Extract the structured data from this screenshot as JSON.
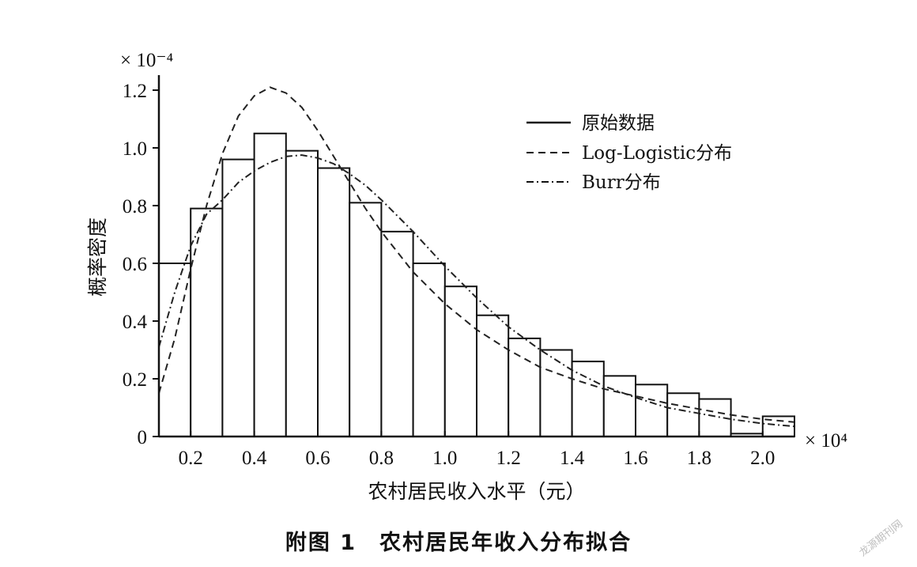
{
  "figure": {
    "caption": "附图 1　农村居民年收入分布拟合",
    "watermark": "龙源期刊网"
  },
  "chart_data": {
    "type": "bar",
    "title": "",
    "xlabel": "农村居民收入水平（元）",
    "ylabel": "概率密度",
    "x_multiplier": "× 10⁴",
    "y_multiplier": "× 10⁻⁴",
    "xlim": [
      0.1,
      2.1
    ],
    "ylim": [
      0,
      1.2
    ],
    "x_ticks": [
      0.2,
      0.4,
      0.6,
      0.8,
      1.0,
      1.2,
      1.4,
      1.6,
      1.8,
      2.0
    ],
    "x_tick_labels": [
      "0.2",
      "0.4",
      "0.6",
      "0.8",
      "1.0",
      "1.2",
      "1.4",
      "1.6",
      "1.8",
      "2.0"
    ],
    "y_ticks": [
      0,
      0.2,
      0.4,
      0.6,
      0.8,
      1.0,
      1.2
    ],
    "y_tick_labels": [
      "0",
      "0.2",
      "0.4",
      "0.6",
      "0.8",
      "1.0",
      "1.2"
    ],
    "bin_width": 0.1,
    "bin_starts": [
      0.1,
      0.2,
      0.3,
      0.4,
      0.5,
      0.6,
      0.7,
      0.8,
      0.9,
      1.0,
      1.1,
      1.2,
      1.3,
      1.4,
      1.5,
      1.6,
      1.7,
      1.8,
      1.9,
      2.0
    ],
    "values": [
      0.6,
      0.79,
      0.96,
      1.05,
      0.99,
      0.93,
      0.81,
      0.71,
      0.6,
      0.52,
      0.42,
      0.34,
      0.3,
      0.26,
      0.21,
      0.18,
      0.15,
      0.13,
      0.01,
      0.07
    ],
    "legend_position": "top-right",
    "series": [
      {
        "name": "原始数据",
        "style": "solid"
      },
      {
        "name": "Log-Logistic分布",
        "style": "dashed",
        "x": [
          0.1,
          0.15,
          0.2,
          0.25,
          0.3,
          0.35,
          0.4,
          0.45,
          0.5,
          0.55,
          0.6,
          0.65,
          0.7,
          0.75,
          0.8,
          0.9,
          1.0,
          1.1,
          1.2,
          1.3,
          1.4,
          1.5,
          1.6,
          1.7,
          1.8,
          1.9,
          2.0,
          2.1
        ],
        "y": [
          0.15,
          0.34,
          0.58,
          0.8,
          0.98,
          1.11,
          1.18,
          1.21,
          1.19,
          1.14,
          1.06,
          0.97,
          0.88,
          0.79,
          0.71,
          0.57,
          0.46,
          0.37,
          0.3,
          0.24,
          0.2,
          0.165,
          0.14,
          0.115,
          0.095,
          0.075,
          0.06,
          0.05
        ]
      },
      {
        "name": "Burr分布",
        "style": "dashdot",
        "x": [
          0.1,
          0.15,
          0.2,
          0.25,
          0.3,
          0.35,
          0.4,
          0.45,
          0.5,
          0.55,
          0.6,
          0.65,
          0.7,
          0.75,
          0.8,
          0.9,
          1.0,
          1.1,
          1.2,
          1.3,
          1.4,
          1.5,
          1.6,
          1.7,
          1.8,
          1.9,
          2.0,
          2.1
        ],
        "y": [
          0.31,
          0.5,
          0.66,
          0.77,
          0.82,
          0.88,
          0.92,
          0.95,
          0.97,
          0.975,
          0.965,
          0.945,
          0.91,
          0.87,
          0.82,
          0.71,
          0.59,
          0.48,
          0.38,
          0.3,
          0.23,
          0.175,
          0.135,
          0.1,
          0.08,
          0.06,
          0.045,
          0.035
        ]
      }
    ]
  }
}
